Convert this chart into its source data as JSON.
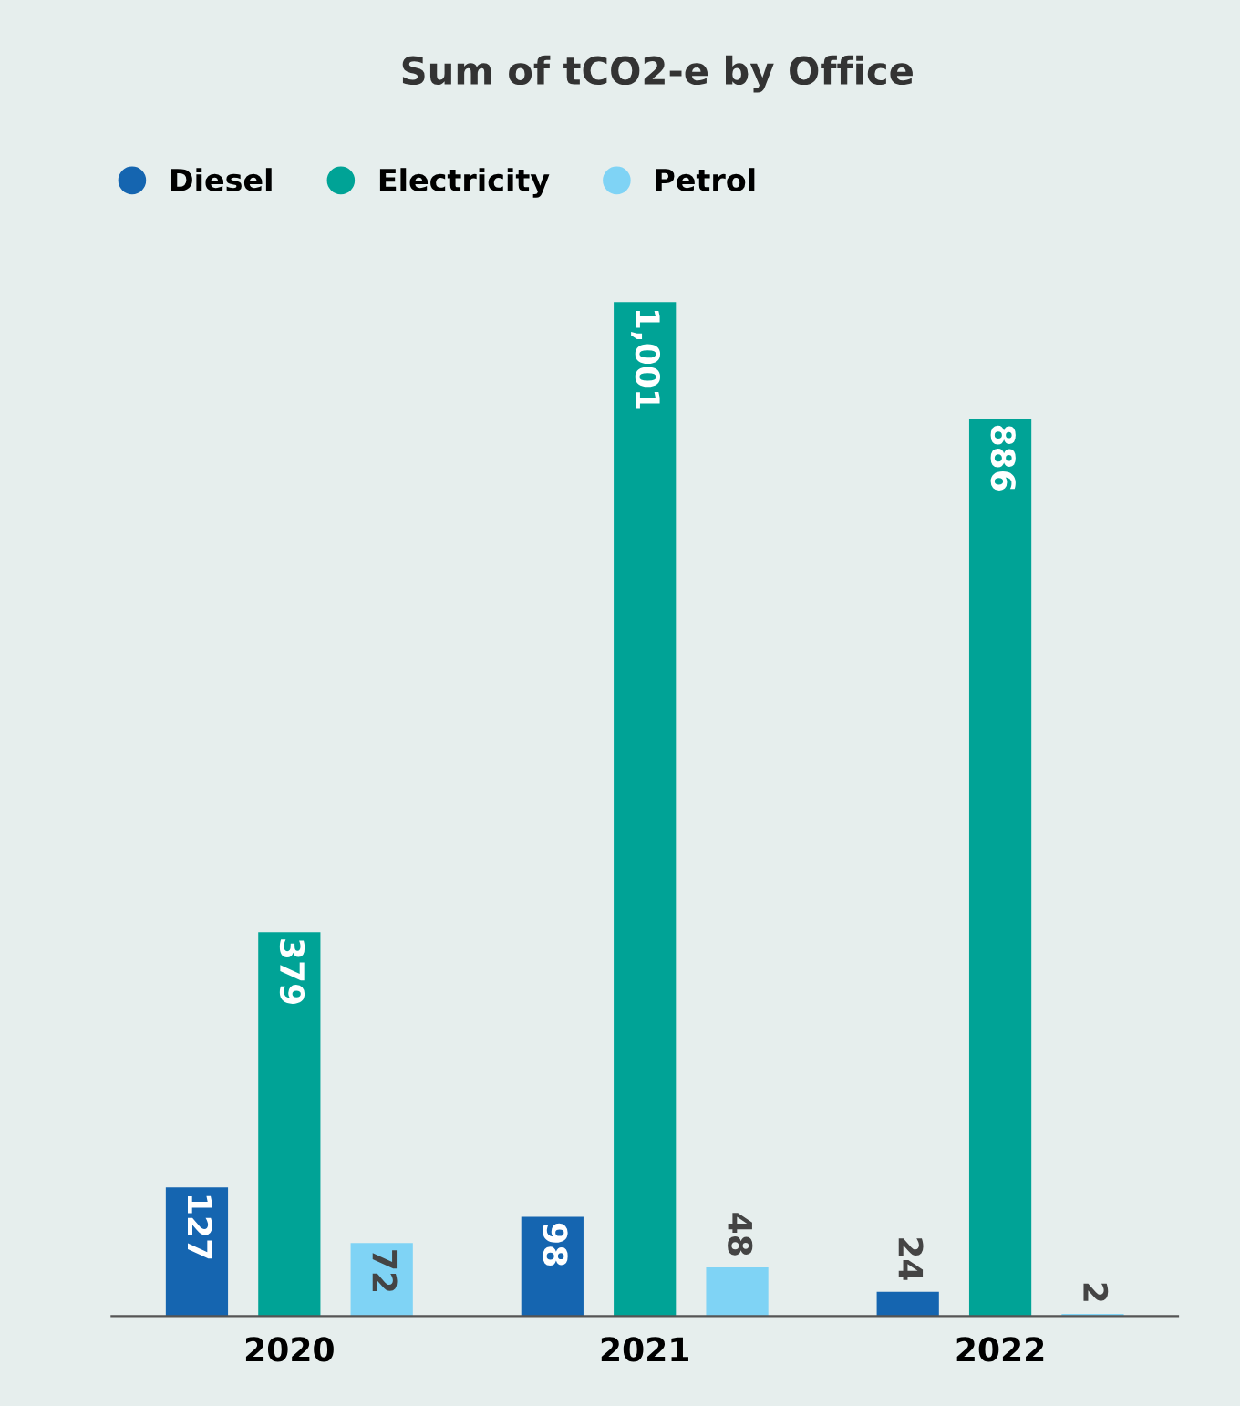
{
  "chart_data": {
    "type": "bar",
    "title": "Sum of tCO2-e by Office",
    "categories": [
      "2020",
      "2021",
      "2022"
    ],
    "series": [
      {
        "name": "Diesel",
        "color": "#1565b0",
        "values": [
          127,
          98,
          24
        ],
        "value_labels": [
          "127",
          "98",
          "24"
        ]
      },
      {
        "name": "Electricity",
        "color": "#00a396",
        "values": [
          379,
          1001,
          886
        ],
        "value_labels": [
          "379",
          "1,001",
          "886"
        ]
      },
      {
        "name": "Petrol",
        "color": "#7fd3f5",
        "values": [
          72,
          48,
          2
        ],
        "value_labels": [
          "72",
          "48",
          "2"
        ]
      }
    ],
    "relative": false,
    "legend": "top left",
    "grid": false
  }
}
